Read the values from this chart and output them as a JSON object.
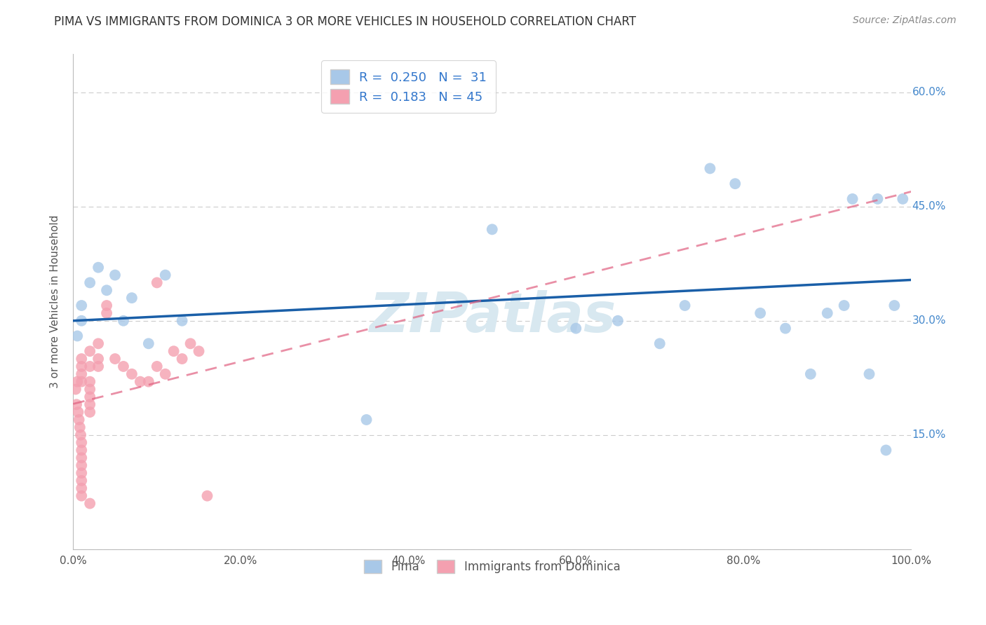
{
  "title": "PIMA VS IMMIGRANTS FROM DOMINICA 3 OR MORE VEHICLES IN HOUSEHOLD CORRELATION CHART",
  "source": "Source: ZipAtlas.com",
  "ylabel": "3 or more Vehicles in Household",
  "xlim": [
    0.0,
    1.0
  ],
  "ylim": [
    0.0,
    0.65
  ],
  "xticks": [
    0.0,
    0.2,
    0.4,
    0.6,
    0.8,
    1.0
  ],
  "yticks": [
    0.0,
    0.15,
    0.3,
    0.45,
    0.6
  ],
  "pima_color": "#a8c8e8",
  "dominica_color": "#f4a0b0",
  "pima_line_color": "#1a5fa8",
  "dominica_line_color": "#e06080",
  "pima_R": 0.25,
  "pima_N": 31,
  "dominica_R": 0.183,
  "dominica_N": 45,
  "watermark": "ZIPatlas",
  "background_color": "#ffffff",
  "grid_color": "#cccccc",
  "title_fontsize": 12,
  "axis_label_color": "#4488cc",
  "tick_color": "#888888",
  "pima_x": [
    0.005,
    0.01,
    0.01,
    0.02,
    0.03,
    0.04,
    0.05,
    0.06,
    0.07,
    0.09,
    0.11,
    0.13,
    0.35,
    0.5,
    0.6,
    0.65,
    0.7,
    0.73,
    0.76,
    0.79,
    0.82,
    0.85,
    0.88,
    0.9,
    0.92,
    0.93,
    0.95,
    0.96,
    0.97,
    0.98,
    0.99
  ],
  "pima_y": [
    0.28,
    0.32,
    0.3,
    0.35,
    0.37,
    0.34,
    0.36,
    0.3,
    0.33,
    0.27,
    0.36,
    0.3,
    0.17,
    0.42,
    0.29,
    0.3,
    0.27,
    0.32,
    0.5,
    0.48,
    0.31,
    0.29,
    0.23,
    0.31,
    0.32,
    0.46,
    0.23,
    0.46,
    0.13,
    0.32,
    0.46
  ],
  "dominica_x": [
    0.003,
    0.004,
    0.005,
    0.006,
    0.007,
    0.008,
    0.009,
    0.01,
    0.01,
    0.01,
    0.01,
    0.01,
    0.01,
    0.01,
    0.01,
    0.01,
    0.01,
    0.01,
    0.01,
    0.02,
    0.02,
    0.02,
    0.02,
    0.02,
    0.02,
    0.02,
    0.02,
    0.03,
    0.03,
    0.03,
    0.04,
    0.04,
    0.05,
    0.06,
    0.07,
    0.08,
    0.09,
    0.1,
    0.1,
    0.11,
    0.12,
    0.13,
    0.14,
    0.15,
    0.16
  ],
  "dominica_y": [
    0.21,
    0.19,
    0.22,
    0.18,
    0.17,
    0.16,
    0.15,
    0.14,
    0.13,
    0.12,
    0.11,
    0.1,
    0.09,
    0.08,
    0.07,
    0.22,
    0.23,
    0.24,
    0.25,
    0.26,
    0.24,
    0.22,
    0.21,
    0.2,
    0.19,
    0.18,
    0.06,
    0.27,
    0.25,
    0.24,
    0.31,
    0.32,
    0.25,
    0.24,
    0.23,
    0.22,
    0.22,
    0.24,
    0.35,
    0.23,
    0.26,
    0.25,
    0.27,
    0.26,
    0.07
  ]
}
